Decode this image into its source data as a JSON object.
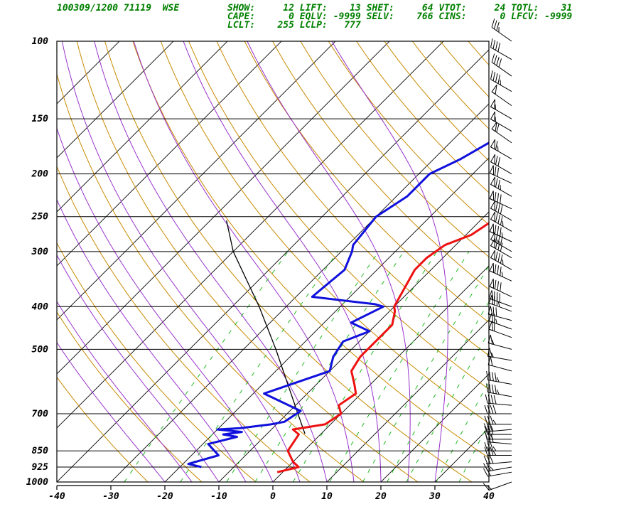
{
  "header": {
    "station": "100309/1200 71119  WSE",
    "line1": "SHOW:     12 LIFT:    13 SHET:     64 VTOT:     24 TOTL:    31",
    "line2": "CAPE:      0 EQLV: -9999 SELV:    766 CINS:      0 LFCV: -9999",
    "line3": "LCLT:    255 LCLP:   777"
  },
  "colors": {
    "temperature": "#ee1111",
    "dewpoint": "#1111dd",
    "dry_adiabat": "#c88a00",
    "moist_adiabat": "#9933cc",
    "mixing_ratio": "#22bb22",
    "isotherm": "#000000"
  },
  "chart_data": {
    "type": "line",
    "title": "",
    "xlabel": "",
    "ylabel": "",
    "x_ticks": [
      -40,
      -30,
      -20,
      -10,
      0,
      10,
      20,
      30,
      40
    ],
    "x_tick_labels": [
      "-40",
      "-30",
      "-20",
      "-10",
      "0",
      "10",
      "20",
      "30",
      "40"
    ],
    "pressure_levels": [
      100,
      150,
      200,
      250,
      300,
      400,
      500,
      700,
      850,
      925,
      1000
    ],
    "pressure_labels": [
      "100",
      "150",
      "200",
      "250",
      "300",
      "400",
      "500",
      "700",
      "850",
      "925",
      "1000"
    ],
    "xlim": [
      -40,
      40
    ],
    "plim": [
      1000,
      100
    ],
    "y_scale": "log",
    "series": [
      {
        "key": "temperature",
        "points": [
          [
            950,
            -1
          ],
          [
            925,
            2
          ],
          [
            900,
            0
          ],
          [
            850,
            -3
          ],
          [
            780,
            -4
          ],
          [
            760,
            -6
          ],
          [
            740,
            -1
          ],
          [
            700,
            0
          ],
          [
            670,
            -2
          ],
          [
            630,
            -1
          ],
          [
            600,
            -3
          ],
          [
            560,
            -6
          ],
          [
            520,
            -7
          ],
          [
            480,
            -7
          ],
          [
            440,
            -7
          ],
          [
            410,
            -9
          ],
          [
            400,
            -10
          ],
          [
            330,
            -13
          ],
          [
            310,
            -13
          ],
          [
            290,
            -12
          ],
          [
            275,
            -9
          ],
          [
            260,
            -8
          ],
          [
            230,
            -4
          ],
          [
            215,
            -1
          ],
          [
            202,
            1
          ],
          [
            195,
            6
          ],
          [
            180,
            10
          ],
          [
            165,
            13
          ],
          [
            155,
            17
          ],
          [
            150,
            18
          ],
          [
            145,
            20
          ],
          [
            130,
            22
          ],
          [
            120,
            24
          ],
          [
            112,
            24
          ],
          [
            105,
            27
          ],
          [
            100,
            29
          ]
        ]
      },
      {
        "key": "dewpoint",
        "points": [
          [
            925,
            -16
          ],
          [
            910,
            -19
          ],
          [
            870,
            -15
          ],
          [
            820,
            -19
          ],
          [
            790,
            -15
          ],
          [
            780,
            -18
          ],
          [
            770,
            -15
          ],
          [
            760,
            -20
          ],
          [
            755,
            -16
          ],
          [
            740,
            -11
          ],
          [
            730,
            -9
          ],
          [
            690,
            -8
          ],
          [
            630,
            -18
          ],
          [
            560,
            -10
          ],
          [
            520,
            -12
          ],
          [
            480,
            -13
          ],
          [
            455,
            -10
          ],
          [
            435,
            -15
          ],
          [
            400,
            -12
          ],
          [
            395,
            -14
          ],
          [
            380,
            -27
          ],
          [
            330,
            -26
          ],
          [
            300,
            -28
          ],
          [
            290,
            -29
          ],
          [
            250,
            -30
          ],
          [
            225,
            -28
          ],
          [
            200,
            -28
          ],
          [
            185,
            -25
          ],
          [
            165,
            -22
          ],
          [
            155,
            -19
          ],
          [
            145,
            -16
          ],
          [
            140,
            -14
          ],
          [
            125,
            -12
          ],
          [
            115,
            -9
          ],
          [
            108,
            -7
          ],
          [
            100,
            -4
          ]
        ]
      }
    ],
    "dry_adiabats_theta": [
      250,
      260,
      270,
      280,
      290,
      300,
      310,
      320,
      330,
      340,
      350,
      360,
      370,
      380,
      390,
      400,
      410,
      420,
      430,
      440,
      450
    ],
    "moist_adiabats_start_temp_1000": [
      -20,
      -15,
      -10,
      -5,
      0,
      5,
      10,
      15,
      20,
      25,
      30
    ],
    "mixing_ratios_gkg": [
      0.4,
      1,
      2,
      3,
      5,
      8,
      12,
      16,
      20,
      28,
      36
    ],
    "isotherms": [
      -110,
      -100,
      -90,
      -80,
      -70,
      -60,
      -50,
      -40,
      -30,
      -20,
      -10,
      0,
      10,
      20,
      30,
      40
    ],
    "parcel_path": [
      [
        777,
        -3
      ],
      [
        700,
        -8
      ],
      [
        500,
        -24
      ],
      [
        400,
        -35
      ],
      [
        300,
        -50
      ],
      [
        255,
        -57
      ]
    ],
    "winds": [
      [
        1000,
        250,
        15
      ],
      [
        950,
        260,
        20
      ],
      [
        925,
        260,
        25
      ],
      [
        900,
        265,
        30
      ],
      [
        870,
        270,
        35
      ],
      [
        850,
        270,
        35
      ],
      [
        820,
        275,
        30
      ],
      [
        800,
        270,
        25
      ],
      [
        780,
        270,
        30
      ],
      [
        760,
        265,
        30
      ],
      [
        740,
        270,
        35
      ],
      [
        700,
        270,
        40
      ],
      [
        670,
        275,
        40
      ],
      [
        640,
        280,
        45
      ],
      [
        600,
        280,
        45
      ],
      [
        560,
        285,
        50
      ],
      [
        530,
        280,
        55
      ],
      [
        500,
        285,
        55
      ],
      [
        470,
        290,
        60
      ],
      [
        450,
        290,
        65
      ],
      [
        430,
        285,
        70
      ],
      [
        410,
        290,
        75
      ],
      [
        400,
        290,
        80
      ],
      [
        380,
        295,
        80
      ],
      [
        350,
        295,
        85
      ],
      [
        330,
        300,
        85
      ],
      [
        310,
        300,
        80
      ],
      [
        300,
        300,
        80
      ],
      [
        285,
        295,
        85
      ],
      [
        270,
        300,
        85
      ],
      [
        255,
        300,
        80
      ],
      [
        240,
        295,
        80
      ],
      [
        225,
        300,
        75
      ],
      [
        210,
        295,
        70
      ],
      [
        200,
        300,
        70
      ],
      [
        185,
        300,
        65
      ],
      [
        170,
        305,
        60
      ],
      [
        160,
        300,
        55
      ],
      [
        150,
        300,
        55
      ],
      [
        140,
        305,
        50
      ],
      [
        130,
        300,
        45
      ],
      [
        120,
        305,
        40
      ],
      [
        110,
        300,
        40
      ],
      [
        100,
        305,
        35
      ]
    ]
  }
}
